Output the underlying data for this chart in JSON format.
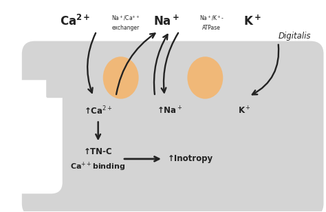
{
  "bg_color": "#ffffff",
  "cell_color": "#d4d4d4",
  "protein_color": "#f0b878",
  "text_color": "#222222",
  "fig_width": 4.74,
  "fig_height": 3.08,
  "dpi": 100,
  "xlim": [
    0,
    10
  ],
  "ylim": [
    0,
    6.5
  ]
}
